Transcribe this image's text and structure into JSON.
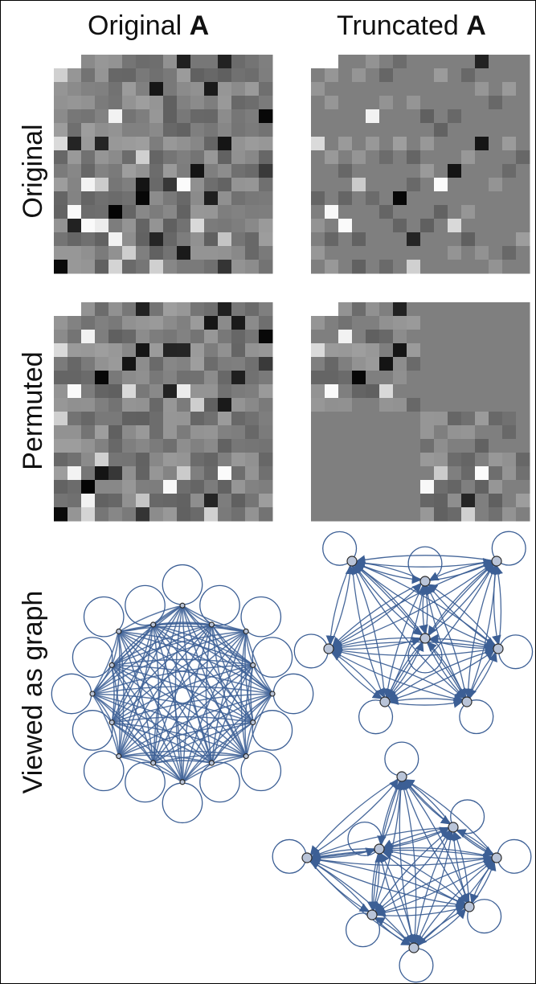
{
  "columns": [
    {
      "prefix": "Original ",
      "symbol": "A"
    },
    {
      "prefix": "Truncated ",
      "symbol": "A"
    }
  ],
  "rows": [
    "Original",
    "Permuted",
    "Viewed as graph"
  ],
  "colors": {
    "background": "#ffffff",
    "edge": "#3c5f95",
    "node_fill": "#b9c4d8",
    "node_stroke": "#2b2b2b",
    "matrix_zero": "#7f7f7f"
  },
  "matrix_size": 16,
  "graph_nodes": {
    "full": 16,
    "cluster_top": 8,
    "cluster_bottom": 8
  }
}
